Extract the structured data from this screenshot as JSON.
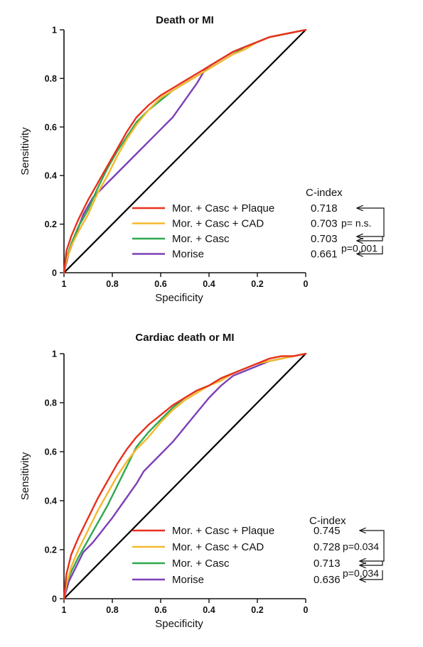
{
  "colors": {
    "red": "#e8301c",
    "orange": "#f5b82e",
    "green": "#2fa84f",
    "purple": "#7d3fb5",
    "reference": "#000000",
    "axis": "#111111"
  },
  "chart_data": [
    {
      "type": "line",
      "title": "Death or MI",
      "xlabel": "Specificity",
      "ylabel": "Sensitivity",
      "xlim": [
        1,
        0
      ],
      "ylim": [
        0,
        1
      ],
      "x_reversed": true,
      "xticks": [
        "1",
        "0.8",
        "0.6",
        "0.4",
        "0.2",
        "0"
      ],
      "yticks": [
        "0",
        "0.2",
        "0.4",
        "0.6",
        "0.8",
        "1"
      ],
      "legend_placement": "bottom-right",
      "cindex_header": "C-index",
      "reference_line": true,
      "series": [
        {
          "name": "Mor. + Casc + Plaque",
          "color_key": "red",
          "c_index": "0.718",
          "x": [
            1,
            0.99,
            0.97,
            0.94,
            0.9,
            0.86,
            0.82,
            0.78,
            0.74,
            0.7,
            0.65,
            0.6,
            0.55,
            0.5,
            0.45,
            0.4,
            0.35,
            0.3,
            0.25,
            0.2,
            0.15,
            0.1,
            0.05,
            0
          ],
          "y": [
            0,
            0.09,
            0.15,
            0.22,
            0.3,
            0.37,
            0.44,
            0.51,
            0.58,
            0.64,
            0.69,
            0.73,
            0.76,
            0.79,
            0.82,
            0.85,
            0.88,
            0.91,
            0.93,
            0.95,
            0.97,
            0.98,
            0.99,
            1
          ]
        },
        {
          "name": "Mor. + Casc + CAD",
          "color_key": "orange",
          "c_index": "0.703",
          "x": [
            1,
            0.99,
            0.97,
            0.94,
            0.9,
            0.86,
            0.82,
            0.78,
            0.74,
            0.7,
            0.65,
            0.6,
            0.55,
            0.5,
            0.45,
            0.4,
            0.35,
            0.3,
            0.25,
            0.2,
            0.15,
            0.1,
            0.05,
            0
          ],
          "y": [
            0,
            0.05,
            0.11,
            0.17,
            0.24,
            0.33,
            0.4,
            0.48,
            0.55,
            0.61,
            0.67,
            0.72,
            0.75,
            0.78,
            0.81,
            0.84,
            0.87,
            0.9,
            0.92,
            0.95,
            0.97,
            0.98,
            0.99,
            1
          ]
        },
        {
          "name": "Mor. + Casc",
          "color_key": "green",
          "c_index": "0.703",
          "x": [
            1,
            0.99,
            0.97,
            0.94,
            0.9,
            0.86,
            0.82,
            0.78,
            0.74,
            0.7,
            0.65,
            0.6,
            0.55,
            0.5,
            0.45,
            0.4,
            0.35,
            0.3,
            0.25,
            0.2,
            0.15,
            0.1,
            0.05,
            0
          ],
          "y": [
            0,
            0.06,
            0.12,
            0.19,
            0.26,
            0.35,
            0.43,
            0.5,
            0.56,
            0.62,
            0.67,
            0.71,
            0.75,
            0.78,
            0.81,
            0.84,
            0.87,
            0.9,
            0.93,
            0.95,
            0.97,
            0.98,
            0.99,
            1
          ]
        },
        {
          "name": "Morise",
          "color_key": "purple",
          "c_index": "0.661",
          "x": [
            1,
            0.98,
            0.95,
            0.92,
            0.88,
            0.84,
            0.8,
            0.75,
            0.7,
            0.65,
            0.6,
            0.55,
            0.5,
            0.45,
            0.42,
            0.4,
            0.35,
            0.3,
            0.25,
            0.2,
            0.15,
            0.1,
            0.05,
            0
          ],
          "y": [
            0,
            0.08,
            0.16,
            0.24,
            0.31,
            0.35,
            0.39,
            0.44,
            0.49,
            0.54,
            0.59,
            0.64,
            0.71,
            0.78,
            0.83,
            0.85,
            0.88,
            0.91,
            0.93,
            0.95,
            0.97,
            0.98,
            0.99,
            1
          ]
        }
      ],
      "comparisons": [
        {
          "label": "p= n.s.",
          "from_series": 0,
          "to_series": 2
        },
        {
          "label": "p=0,001",
          "from_series": 2,
          "to_series": 3
        }
      ]
    },
    {
      "type": "line",
      "title": "Cardiac death or MI",
      "xlabel": "Specificity",
      "ylabel": "Sensitivity",
      "xlim": [
        1,
        0
      ],
      "ylim": [
        0,
        1
      ],
      "x_reversed": true,
      "xticks": [
        "1",
        "0.8",
        "0.6",
        "0.4",
        "0.2",
        "0"
      ],
      "yticks": [
        "0",
        "0.2",
        "0.4",
        "0.6",
        "0.8",
        "1"
      ],
      "legend_placement": "bottom-right",
      "cindex_header": "C-index",
      "reference_line": true,
      "series": [
        {
          "name": "Mor. + Casc + Plaque",
          "color_key": "red",
          "c_index": "0.745",
          "x": [
            1,
            0.99,
            0.97,
            0.94,
            0.9,
            0.86,
            0.82,
            0.78,
            0.74,
            0.7,
            0.65,
            0.6,
            0.55,
            0.5,
            0.45,
            0.4,
            0.35,
            0.3,
            0.25,
            0.2,
            0.15,
            0.1,
            0.05,
            0
          ],
          "y": [
            0,
            0.1,
            0.18,
            0.25,
            0.33,
            0.41,
            0.48,
            0.55,
            0.61,
            0.66,
            0.71,
            0.75,
            0.79,
            0.82,
            0.85,
            0.87,
            0.9,
            0.92,
            0.94,
            0.96,
            0.98,
            0.99,
            0.99,
            1
          ]
        },
        {
          "name": "Mor. + Casc + CAD",
          "color_key": "orange",
          "c_index": "0.728",
          "x": [
            1,
            0.99,
            0.97,
            0.94,
            0.9,
            0.86,
            0.82,
            0.78,
            0.74,
            0.7,
            0.65,
            0.6,
            0.55,
            0.5,
            0.45,
            0.4,
            0.35,
            0.3,
            0.25,
            0.2,
            0.15,
            0.1,
            0.05,
            0
          ],
          "y": [
            0,
            0.06,
            0.13,
            0.2,
            0.28,
            0.36,
            0.43,
            0.5,
            0.56,
            0.61,
            0.66,
            0.72,
            0.77,
            0.81,
            0.84,
            0.87,
            0.89,
            0.92,
            0.94,
            0.96,
            0.97,
            0.98,
            0.99,
            1
          ]
        },
        {
          "name": "Mor. + Casc",
          "color_key": "green",
          "c_index": "0.713",
          "x": [
            1,
            0.99,
            0.97,
            0.94,
            0.9,
            0.86,
            0.82,
            0.78,
            0.74,
            0.7,
            0.65,
            0.6,
            0.55,
            0.5,
            0.45,
            0.4,
            0.35,
            0.3,
            0.25,
            0.2,
            0.15,
            0.1,
            0.05,
            0
          ],
          "y": [
            0,
            0.06,
            0.11,
            0.17,
            0.24,
            0.31,
            0.38,
            0.46,
            0.54,
            0.62,
            0.68,
            0.73,
            0.78,
            0.82,
            0.85,
            0.87,
            0.9,
            0.92,
            0.94,
            0.96,
            0.97,
            0.98,
            0.99,
            1
          ]
        },
        {
          "name": "Morise",
          "color_key": "purple",
          "c_index": "0.636",
          "x": [
            1,
            0.98,
            0.95,
            0.92,
            0.88,
            0.84,
            0.8,
            0.75,
            0.7,
            0.67,
            0.62,
            0.55,
            0.5,
            0.45,
            0.4,
            0.35,
            0.3,
            0.25,
            0.2,
            0.15,
            0.1,
            0.05,
            0
          ],
          "y": [
            0,
            0.07,
            0.13,
            0.19,
            0.23,
            0.28,
            0.33,
            0.4,
            0.47,
            0.52,
            0.57,
            0.64,
            0.7,
            0.76,
            0.82,
            0.87,
            0.91,
            0.93,
            0.95,
            0.97,
            0.98,
            0.99,
            1
          ]
        }
      ],
      "comparisons": [
        {
          "label": "p=0.034",
          "from_series": 0,
          "to_series": 2
        },
        {
          "label": "p=0,034",
          "from_series": 2,
          "to_series": 3
        }
      ]
    }
  ]
}
